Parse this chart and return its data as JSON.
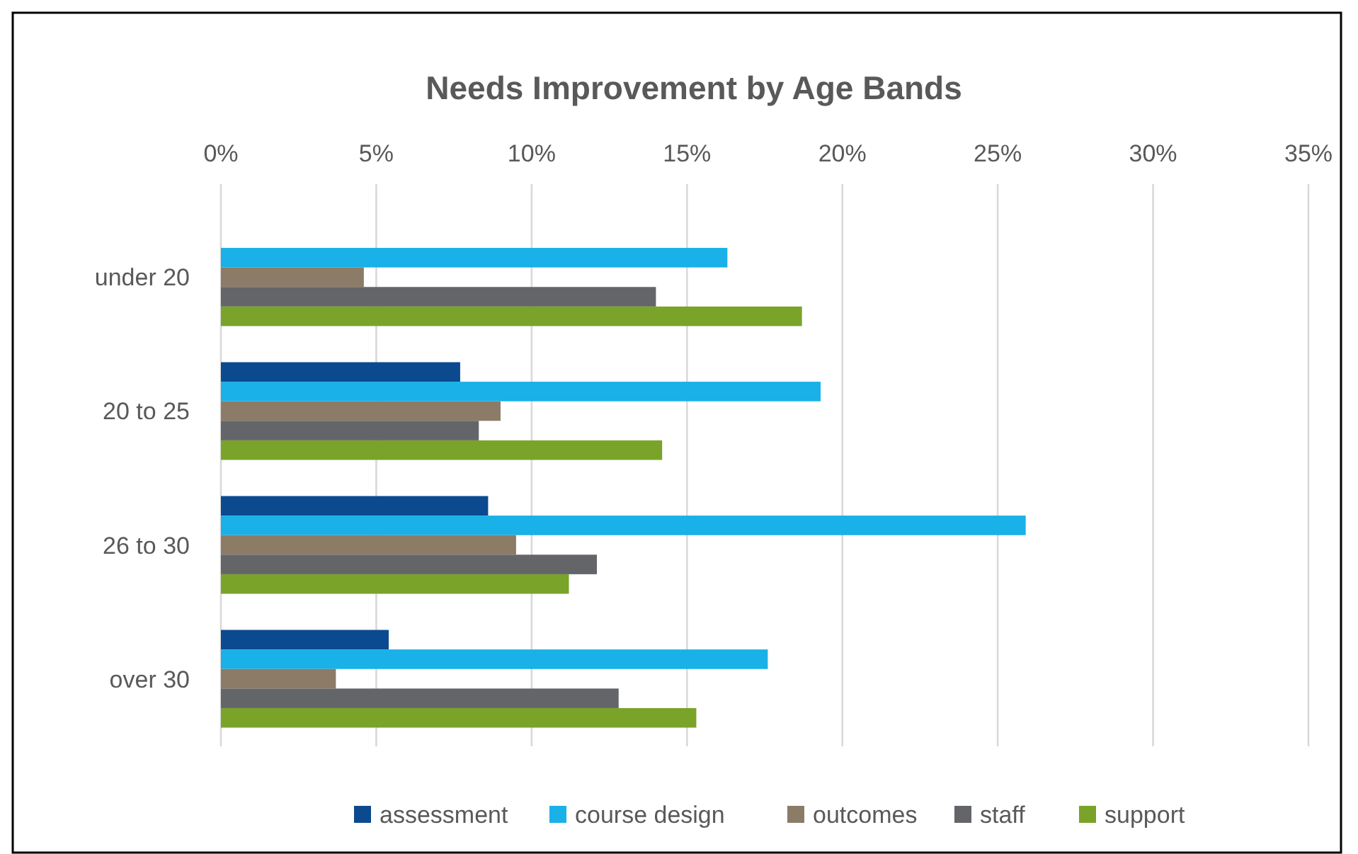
{
  "chart_data": {
    "type": "bar",
    "orientation": "horizontal",
    "title": "Needs Improvement by Age Bands",
    "categories": [
      "under 20",
      "20 to 25",
      "26 to 30",
      "over 30"
    ],
    "series": [
      {
        "name": "assessment",
        "color": "#0b4a8f",
        "values": [
          0,
          7.7,
          8.6,
          5.4
        ]
      },
      {
        "name": "course design",
        "color": "#1ab0e8",
        "values": [
          16.3,
          19.3,
          25.9,
          17.6
        ]
      },
      {
        "name": "outcomes",
        "color": "#8c7b67",
        "values": [
          4.6,
          9.0,
          9.5,
          3.7
        ]
      },
      {
        "name": "staff",
        "color": "#636569",
        "values": [
          14.0,
          8.3,
          12.1,
          12.8
        ]
      },
      {
        "name": "support",
        "color": "#7aa329",
        "values": [
          18.7,
          14.2,
          11.2,
          15.3
        ]
      }
    ],
    "xlim": [
      0,
      35
    ],
    "xticks": [
      {
        "value": 0,
        "label": "0%"
      },
      {
        "value": 5,
        "label": "5%"
      },
      {
        "value": 10,
        "label": "10%"
      },
      {
        "value": 15,
        "label": "15%"
      },
      {
        "value": 20,
        "label": "20%"
      },
      {
        "value": 25,
        "label": "25%"
      },
      {
        "value": 30,
        "label": "30%"
      },
      {
        "value": 35,
        "label": "35%"
      }
    ],
    "grid": "x",
    "legend": "bottom"
  }
}
